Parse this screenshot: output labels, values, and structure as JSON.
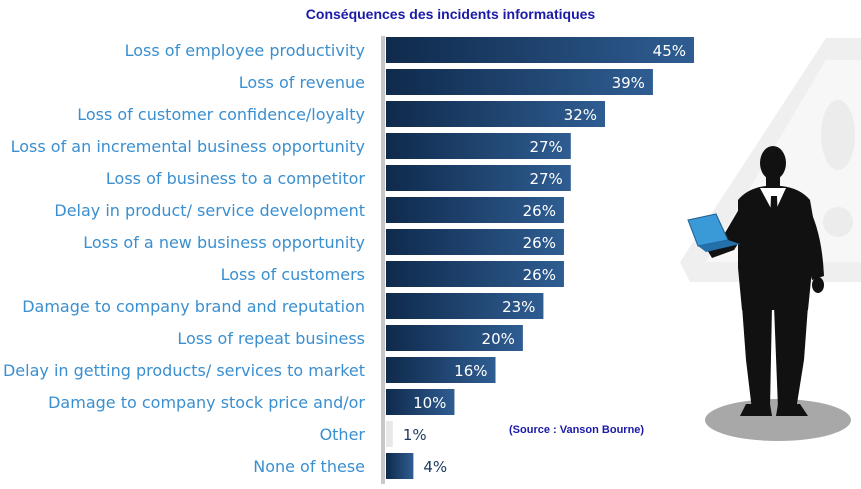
{
  "chart_data": {
    "type": "bar",
    "orientation": "horizontal",
    "title": "Conséquences des incidents informatiques",
    "categories": [
      "Loss of employee productivity",
      "Loss of revenue",
      "Loss of customer confidence/loyalty",
      "Loss of an incremental business opportunity",
      "Loss of business to a competitor",
      "Delay in product/ service development",
      "Loss of a new business opportunity",
      "Loss of customers",
      "Damage to company brand and reputation",
      "Loss of repeat business",
      "Delay in getting products/ services to market",
      "Damage to company stock price and/or",
      "Other",
      "None of these"
    ],
    "values": [
      45,
      39,
      32,
      27,
      27,
      26,
      26,
      26,
      23,
      20,
      16,
      10,
      1,
      4
    ],
    "value_labels": [
      "45%",
      "39%",
      "32%",
      "27%",
      "27%",
      "26%",
      "26%",
      "26%",
      "23%",
      "20%",
      "16%",
      "10%",
      "1%",
      "4%"
    ],
    "xlim": [
      0,
      100
    ],
    "xlabel": "",
    "ylabel": "",
    "grid": false,
    "legend": "none",
    "bar_color_dark": "#0f2a4c",
    "bar_color_light": "#2f5d92",
    "label_color": "#3a8fd0",
    "title_color": "#1a1aa8"
  },
  "source_note": "(Source : Vanson Bourne)",
  "illustration": {
    "icon": "businessman-with-laptop-icon",
    "background_icon": "warning-sign-icon"
  }
}
